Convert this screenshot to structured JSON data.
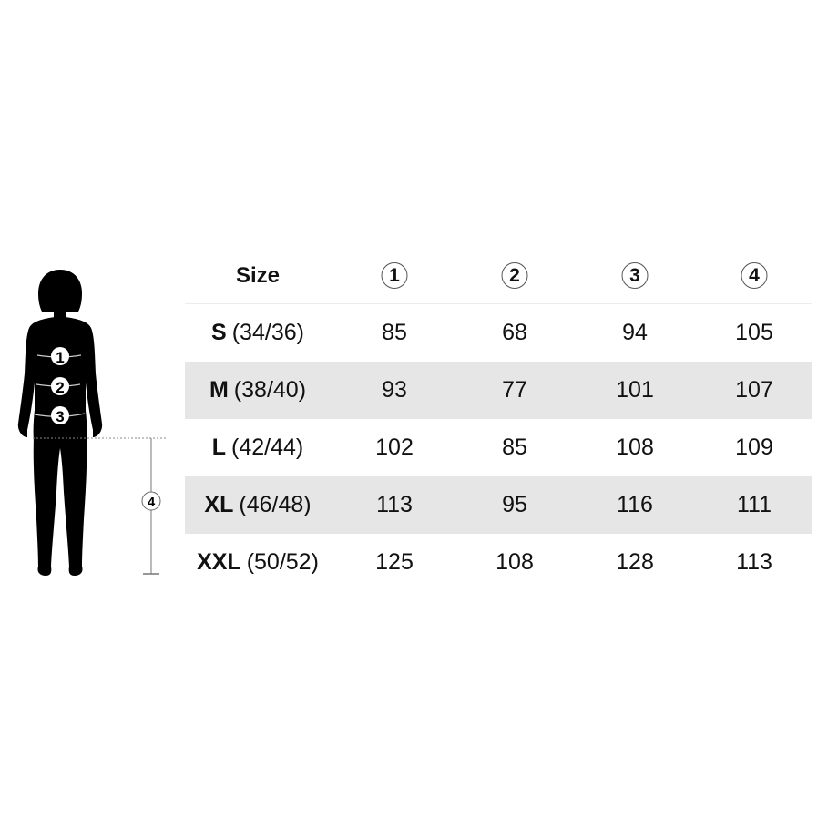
{
  "figure": {
    "markers": [
      "1",
      "2",
      "3"
    ],
    "length_marker": "4"
  },
  "table": {
    "header": {
      "size": "Size",
      "columns": [
        "1",
        "2",
        "3",
        "4"
      ]
    },
    "rows": [
      {
        "code": "S",
        "eu": "(34/36)",
        "values": [
          "85",
          "68",
          "94",
          "105"
        ],
        "shaded": false
      },
      {
        "code": "M",
        "eu": "(38/40)",
        "values": [
          "93",
          "77",
          "101",
          "107"
        ],
        "shaded": true
      },
      {
        "code": "L",
        "eu": "(42/44)",
        "values": [
          "102",
          "85",
          "108",
          "109"
        ],
        "shaded": false
      },
      {
        "code": "XL",
        "eu": "(46/48)",
        "values": [
          "113",
          "95",
          "116",
          "111"
        ],
        "shaded": true
      },
      {
        "code": "XXL",
        "eu": "(50/52)",
        "values": [
          "125",
          "108",
          "128",
          "113"
        ],
        "shaded": false
      }
    ]
  },
  "colors": {
    "shaded_row": "#e6e6e6",
    "silhouette": "#000000"
  }
}
